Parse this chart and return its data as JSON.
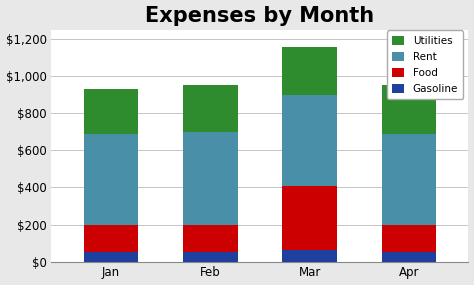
{
  "title": "Expenses by Month",
  "categories": [
    "Jan",
    "Feb",
    "Mar",
    "Apr"
  ],
  "series": {
    "Gasoline": [
      50,
      50,
      60,
      50
    ],
    "Food": [
      150,
      150,
      350,
      150
    ],
    "Rent": [
      490,
      500,
      490,
      490
    ],
    "Utilities": [
      240,
      250,
      260,
      260
    ]
  },
  "colors": {
    "Gasoline": "#2040A0",
    "Food": "#CC0000",
    "Rent": "#4A8FA8",
    "Utilities": "#2E8B2E"
  },
  "ylim": [
    0,
    1250
  ],
  "yticks": [
    0,
    200,
    400,
    600,
    800,
    1000,
    1200
  ],
  "ytick_labels": [
    "$0",
    "$200",
    "$400",
    "$600",
    "$800",
    "$1,000",
    "$1,200"
  ],
  "background_color": "#E8E8E8",
  "plot_bg_color": "#FFFFFF",
  "title_fontsize": 15,
  "bar_width": 0.55,
  "legend_order": [
    "Utilities",
    "Rent",
    "Food",
    "Gasoline"
  ],
  "stack_order": [
    "Gasoline",
    "Food",
    "Rent",
    "Utilities"
  ]
}
